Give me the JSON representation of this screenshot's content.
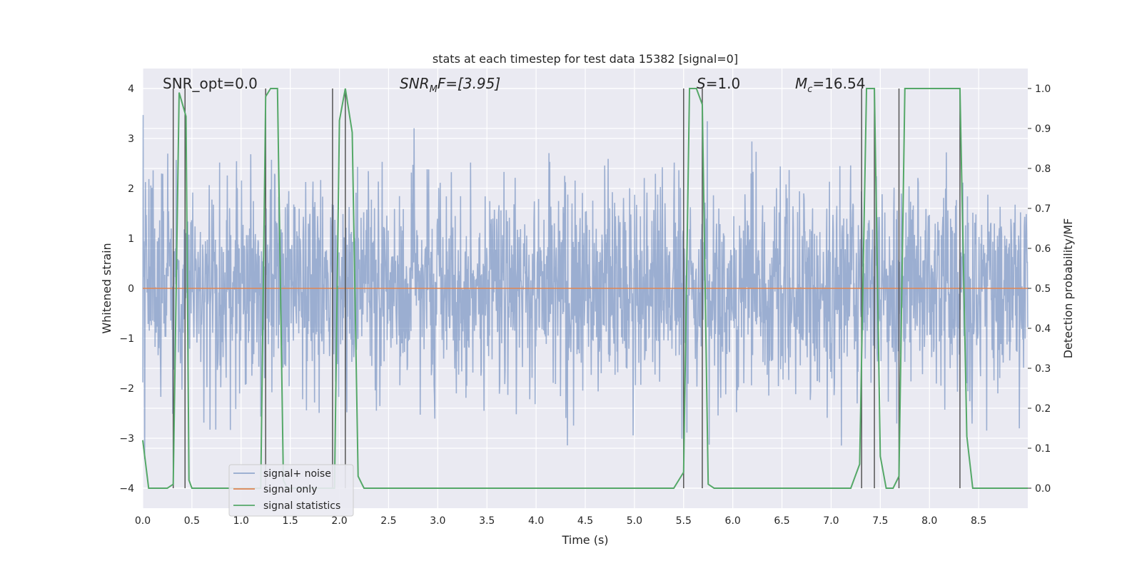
{
  "chart_data": {
    "type": "line",
    "title": "stats at each timestep for test data 15382 [signal=0]",
    "xlabel": "Time (s)",
    "ylabel": "Whitened strain",
    "ylabel_right": "Detection probability/MF",
    "xlim": [
      0.0,
      9.0
    ],
    "ylim": [
      -4.4,
      4.4
    ],
    "ylim_right": [
      -0.05,
      1.05
    ],
    "xticks": [
      "0.0",
      "0.5",
      "1.0",
      "1.5",
      "2.0",
      "2.5",
      "3.0",
      "3.5",
      "4.0",
      "4.5",
      "5.0",
      "5.5",
      "6.0",
      "6.5",
      "7.0",
      "7.5",
      "8.0",
      "8.5"
    ],
    "yticks": [
      "−4",
      "−3",
      "−2",
      "−1",
      "0",
      "1",
      "2",
      "3",
      "4"
    ],
    "yticks_right": [
      "0.0",
      "0.1",
      "0.2",
      "0.3",
      "0.4",
      "0.5",
      "0.6",
      "0.7",
      "0.8",
      "0.9",
      "1.0"
    ],
    "grid": true,
    "legend_position": "lower-left",
    "colors": {
      "background": "#eaeaf2",
      "noise": "#4c72b0",
      "signal": "#dd8452",
      "stats": "#55a868",
      "marker": "#555555"
    },
    "annotations": {
      "snr_opt": "SNR_opt=0.0",
      "snr_mf_prefix": "SNR",
      "snr_mf_sub": "M",
      "snr_mf_suffix": "F=[3.95]",
      "s_sym": "S",
      "s_val": "=1.0",
      "mc_sym": "M",
      "mc_sub": "c",
      "mc_val": "=16.54"
    },
    "series": [
      {
        "name": "signal+ noise",
        "style": "noise",
        "x_range": [
          0.0,
          9.0
        ],
        "points": 2304,
        "amplitude_range": [
          -3.7,
          3.5
        ],
        "note_values": "random whitened noise"
      },
      {
        "name": "signal only",
        "style": "flat",
        "x": [
          0.0,
          9.0
        ],
        "y": [
          0.0,
          0.0
        ]
      },
      {
        "name": "signal statistics",
        "style": "stats",
        "axis": "right",
        "x": [
          0.0,
          0.06,
          0.25,
          0.31,
          0.37,
          0.44,
          0.47,
          0.5,
          0.7,
          1.2,
          1.25,
          1.3,
          1.37,
          1.43,
          1.47,
          1.5,
          1.8,
          1.9,
          1.95,
          2.0,
          2.06,
          2.13,
          2.19,
          2.25,
          3.0,
          5.4,
          5.5,
          5.56,
          5.63,
          5.69,
          5.75,
          5.81,
          6.5,
          7.2,
          7.29,
          7.36,
          7.44,
          7.5,
          7.56,
          7.63,
          7.69,
          7.75,
          8.25,
          8.31,
          8.38,
          8.44,
          8.5,
          9.0
        ],
        "y": [
          0.12,
          0.0,
          0.0,
          0.01,
          0.99,
          0.93,
          0.02,
          0.0,
          0.0,
          0.0,
          0.98,
          1.0,
          1.0,
          0.02,
          0.0,
          0.0,
          0.0,
          0.0,
          0.0,
          0.92,
          1.0,
          0.89,
          0.03,
          0.0,
          0.0,
          0.0,
          0.04,
          1.0,
          1.0,
          0.96,
          0.01,
          0.0,
          0.0,
          0.0,
          0.06,
          1.0,
          1.0,
          0.08,
          0.0,
          0.0,
          0.03,
          1.0,
          1.0,
          1.0,
          0.13,
          0.0,
          0.0,
          0.0
        ]
      }
    ],
    "markers_x": [
      0.31,
      0.43,
      1.25,
      1.93,
      2.06,
      5.5,
      5.69,
      7.31,
      7.44,
      7.69,
      8.31
    ],
    "legend": [
      "signal+ noise",
      "signal only",
      "signal statistics"
    ]
  }
}
